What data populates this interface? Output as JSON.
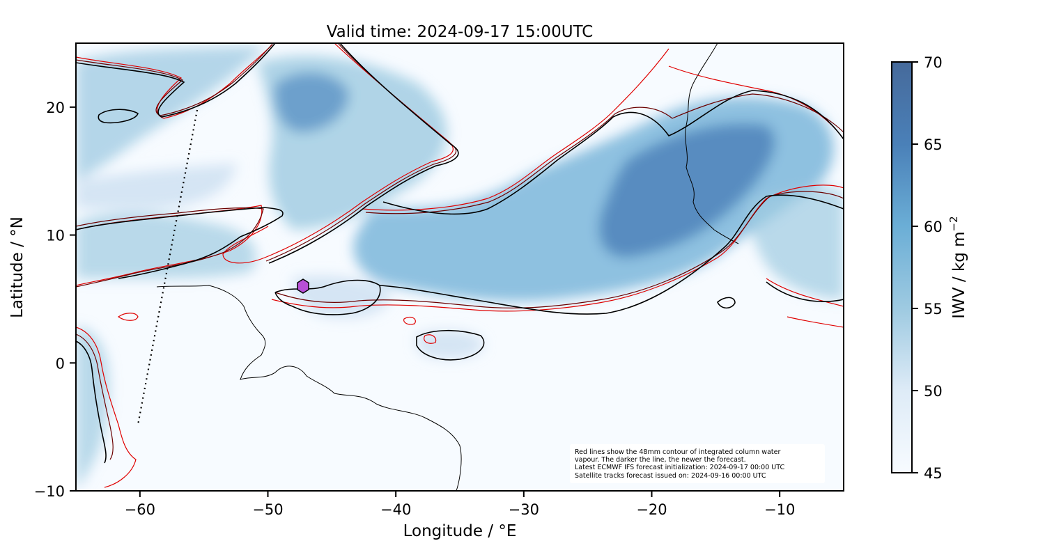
{
  "title": "Valid time: 2024-09-17 15:00UTC",
  "xlabel": "Longitude / °E",
  "ylabel": "Latitude / °N",
  "x_ticks": [
    {
      "value": -60,
      "label": "−60"
    },
    {
      "value": -50,
      "label": "−50"
    },
    {
      "value": -40,
      "label": "−40"
    },
    {
      "value": -30,
      "label": "−30"
    },
    {
      "value": -20,
      "label": "−20"
    },
    {
      "value": -10,
      "label": "−10"
    }
  ],
  "y_ticks": [
    {
      "value": 20,
      "label": "20"
    },
    {
      "value": 10,
      "label": "10"
    },
    {
      "value": 0,
      "label": "0"
    },
    {
      "value": -10,
      "label": "−10"
    }
  ],
  "colorbar": {
    "label": "IWV / kg m",
    "label_sup": "−2",
    "ticks": [
      {
        "value": 70,
        "label": "70"
      },
      {
        "value": 65,
        "label": "65"
      },
      {
        "value": 60,
        "label": "60"
      },
      {
        "value": 55,
        "label": "55"
      },
      {
        "value": 50,
        "label": "50"
      },
      {
        "value": 45,
        "label": "45"
      }
    ],
    "range": [
      45,
      70
    ],
    "colors": [
      "#f7fbff",
      "#c6dbef",
      "#6baed6",
      "#4a80b8",
      "#466a9b"
    ]
  },
  "note_lines": [
    "Red lines show the 48mm contour of integrated column water",
    "vapour. The darker the line, the newer the forecast.",
    "Latest ECMWF IFS forecast initialization: 2024-09-17 00:00 UTC",
    "Satellite tracks forecast issued on: 2024-09-16 00:00 UTC"
  ],
  "map": {
    "extent": {
      "lon": [
        -65,
        -5
      ],
      "lat": [
        -10,
        25
      ]
    },
    "contour_colors": {
      "latest": "#000000",
      "previous": "#6b0000",
      "older": "#e00000"
    },
    "marker_color": "#b84fd6"
  }
}
